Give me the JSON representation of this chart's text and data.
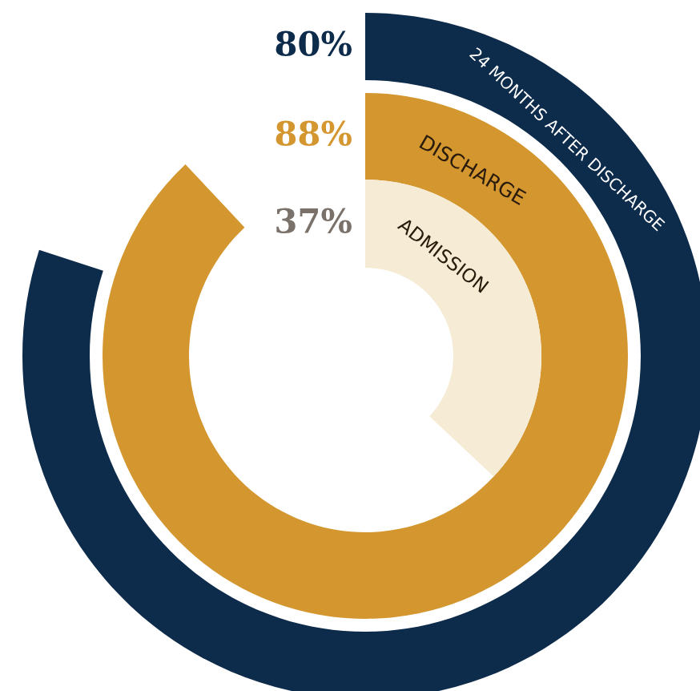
{
  "chart_data": {
    "type": "other",
    "categories": [
      "24 MONTHS AFTER DISCHARGE",
      "DISCHARGE",
      "ADMISSION"
    ],
    "values": [
      80,
      88,
      37
    ],
    "colors": [
      "#0d2b4b",
      "#d4962f",
      "#f6ecd6"
    ],
    "value_labels": [
      "80%",
      "88%",
      "37%"
    ]
  }
}
